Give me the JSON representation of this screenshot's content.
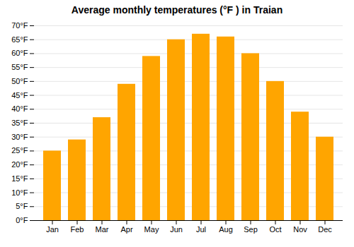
{
  "chart_data": {
    "type": "bar",
    "title": "Average monthly temperatures (°F ) in Traian",
    "categories": [
      "Jan",
      "Feb",
      "Mar",
      "Apr",
      "May",
      "Jun",
      "Jul",
      "Aug",
      "Sep",
      "Oct",
      "Nov",
      "Dec"
    ],
    "values": [
      25,
      29,
      37,
      49,
      59,
      65,
      67,
      66,
      60,
      50,
      39,
      30
    ],
    "color": "#FFA500",
    "ylim": [
      0,
      70
    ],
    "yticks": [
      {
        "value": 0,
        "label": "0°F"
      },
      {
        "value": 5,
        "label": "5°F"
      },
      {
        "value": 10,
        "label": "10°F"
      },
      {
        "value": 15,
        "label": "15°F"
      },
      {
        "value": 20,
        "label": "20°F"
      },
      {
        "value": 25,
        "label": "25°F"
      },
      {
        "value": 30,
        "label": "30°F"
      },
      {
        "value": 35,
        "label": "35°F"
      },
      {
        "value": 40,
        "label": "40°F"
      },
      {
        "value": 45,
        "label": "45°F"
      },
      {
        "value": 50,
        "label": "50°F"
      },
      {
        "value": 55,
        "label": "55°F"
      },
      {
        "value": 60,
        "label": "60°F"
      },
      {
        "value": 65,
        "label": "65°F"
      },
      {
        "value": 70,
        "label": "70°F"
      }
    ],
    "grid": true
  }
}
